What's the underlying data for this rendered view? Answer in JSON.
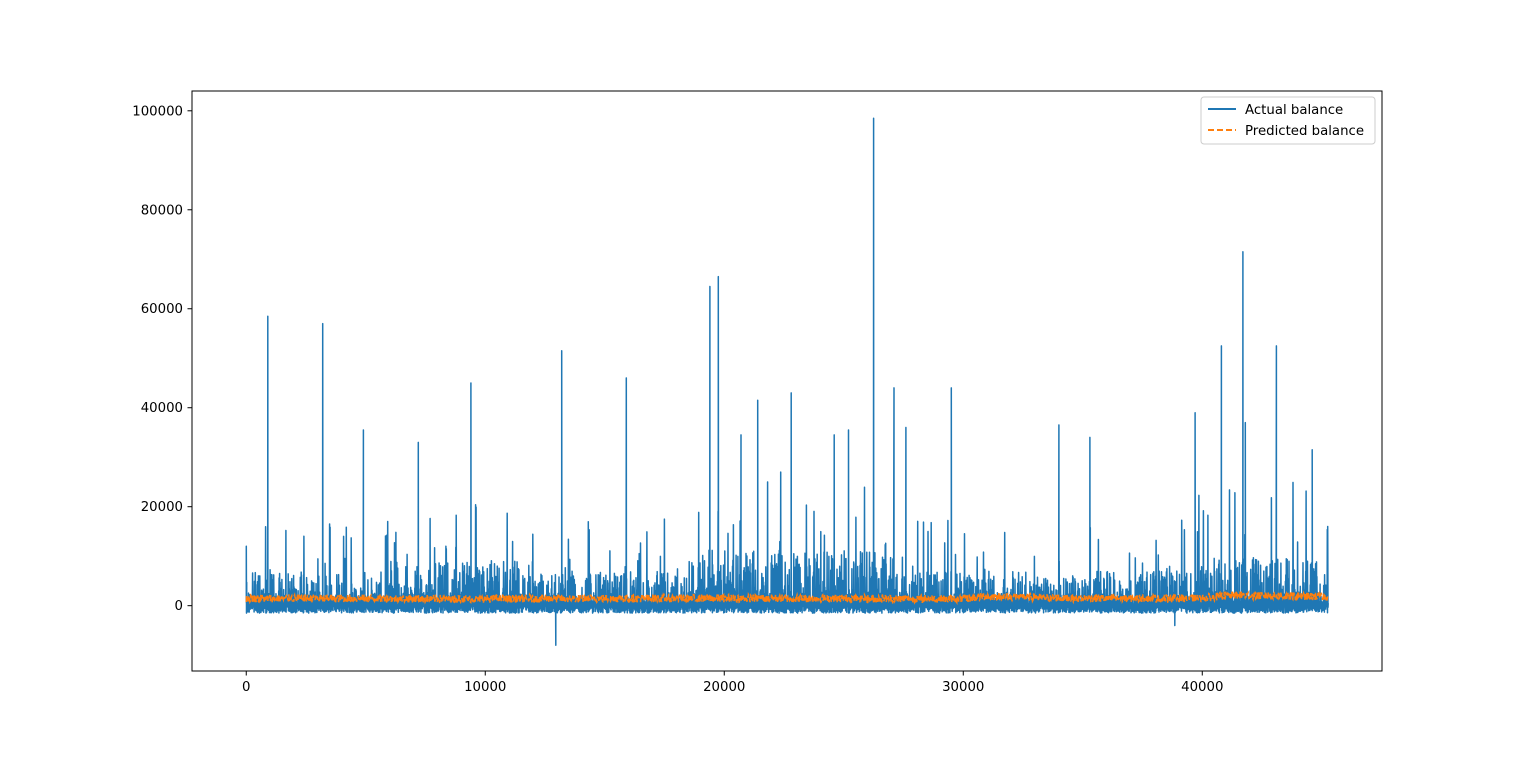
{
  "chart_data": {
    "type": "line",
    "title": "",
    "xlabel": "",
    "ylabel": "",
    "xlim": [
      -2270,
      47520
    ],
    "ylim": [
      -13200,
      104000
    ],
    "x_ticks": [
      0,
      10000,
      20000,
      30000,
      40000
    ],
    "x_tick_labels": [
      "0",
      "10000",
      "20000",
      "30000",
      "40000"
    ],
    "y_ticks": [
      0,
      20000,
      40000,
      60000,
      80000,
      100000
    ],
    "y_tick_labels": [
      "0",
      "20000",
      "40000",
      "60000",
      "80000",
      "100000"
    ],
    "grid": false,
    "legend_placement": "upper right",
    "n_points": 45250,
    "series": [
      {
        "name": "Actual balance",
        "color": "#1f77b4",
        "style": "solid",
        "x": [
          0,
          900,
          3200,
          4900,
          7200,
          9400,
          12950,
          13200,
          15900,
          19400,
          19750,
          20700,
          21400,
          22800,
          24600,
          25200,
          26250,
          27100,
          27600,
          29500,
          34000,
          35300,
          38850,
          39700,
          40800,
          41700,
          41800,
          43100,
          44600,
          45250
        ],
        "y": [
          12000,
          58500,
          57000,
          35500,
          33000,
          45000,
          -8000,
          51500,
          46000,
          64500,
          66500,
          34500,
          41500,
          43000,
          34500,
          35500,
          98500,
          44000,
          36000,
          44000,
          36500,
          34000,
          -4000,
          39000,
          52500,
          71500,
          37000,
          52500,
          31500,
          16000
        ],
        "base_level": 3500
      },
      {
        "name": "Predicted balance",
        "color": "#ff7f0e",
        "style": "dashed",
        "x": [
          0,
          10000,
          20000,
          30000,
          31000,
          35000,
          40000,
          41000,
          43000,
          45250
        ],
        "y": [
          1500,
          1400,
          1500,
          1400,
          1900,
          1500,
          1500,
          2100,
          2000,
          1800
        ]
      }
    ]
  }
}
